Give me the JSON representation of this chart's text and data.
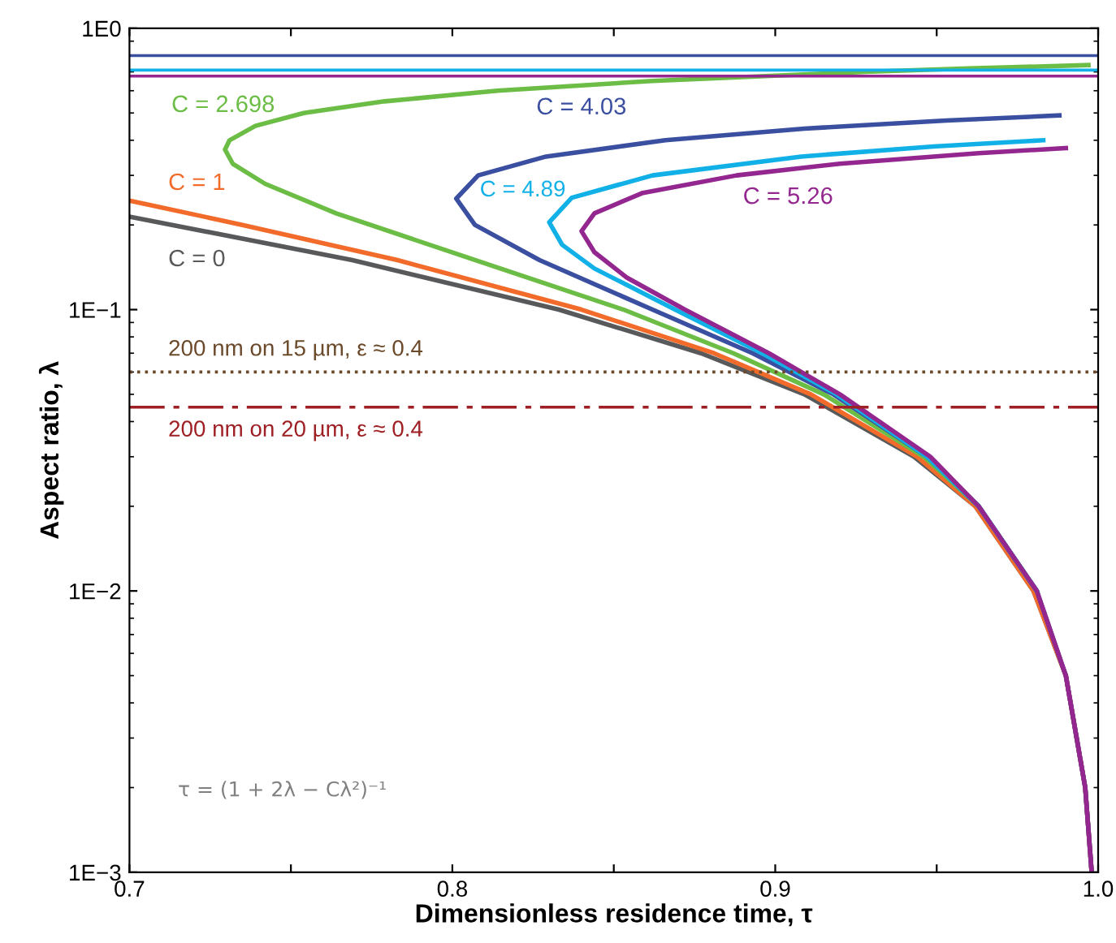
{
  "chart_data": {
    "type": "line",
    "xlabel": "Dimensionless residence time, τ",
    "ylabel": "Aspect ratio, λ",
    "log": "y",
    "xlim": [
      0.7,
      1.0
    ],
    "ylim": [
      0.001,
      1
    ],
    "xticks": [
      0.7,
      {
        "value": 0.75,
        "label": null
      },
      0.8,
      {
        "value": 0.85,
        "label": null
      },
      0.9,
      {
        "value": 0.95,
        "label": null
      },
      {
        "value": 1.0,
        "label": "1.0"
      }
    ],
    "yticks": [
      {
        "value": 0.001,
        "label": "1E−3"
      },
      {
        "value": 0.01,
        "label": "1E−2"
      },
      {
        "value": 0.1,
        "label": "1E−1"
      },
      {
        "value": 1,
        "label": "1E0"
      }
    ],
    "grid": false,
    "legend": false,
    "marker": "none",
    "line_style": "solid",
    "series": [
      {
        "name": "C = 0",
        "color": "#58595b",
        "x": [
          0.7,
          0.769,
          0.833,
          0.877,
          0.909,
          0.943,
          0.962,
          0.98,
          0.99,
          0.996,
          0.998
        ],
        "values": [
          0.214,
          0.15,
          0.1,
          0.07,
          0.05,
          0.03,
          0.02,
          0.01,
          0.005,
          0.002,
          0.001
        ]
      },
      {
        "name": "C = 1",
        "color": "#f26b2a",
        "x": [
          0.7,
          0.735,
          0.783,
          0.84,
          0.881,
          0.911,
          0.944,
          0.962,
          0.98,
          0.99,
          0.996,
          0.998
        ],
        "values": [
          0.244,
          0.2,
          0.15,
          0.1,
          0.07,
          0.05,
          0.03,
          0.02,
          0.01,
          0.005,
          0.002,
          0.001
        ]
      },
      {
        "name": "C = 2.698",
        "color": "#6cbd45",
        "x": [
          0.997,
          0.96,
          0.928,
          0.862,
          0.814,
          0.779,
          0.754,
          0.739,
          0.731,
          0.7296,
          0.732,
          0.742,
          0.764,
          0.807,
          0.853,
          0.887,
          0.915,
          0.946,
          0.963,
          0.981
        ],
        "values": [
          0.74,
          0.72,
          0.7,
          0.65,
          0.6,
          0.55,
          0.5,
          0.45,
          0.4,
          0.3706,
          0.33,
          0.28,
          0.22,
          0.15,
          0.1,
          0.07,
          0.05,
          0.03,
          0.02,
          0.01
        ]
      },
      {
        "name": "C = 4.03",
        "color": "#3a4fa0",
        "x": [
          0.988,
          0.953,
          0.909,
          0.866,
          0.829,
          0.808,
          0.8012,
          0.807,
          0.827,
          0.862,
          0.893,
          0.918,
          0.947,
          0.963,
          0.981,
          0.99,
          0.996,
          0.998
        ],
        "values": [
          0.49,
          0.47,
          0.44,
          0.4,
          0.35,
          0.3,
          0.2481,
          0.2,
          0.15,
          0.1,
          0.07,
          0.05,
          0.03,
          0.02,
          0.01,
          0.005,
          0.002,
          0.001
        ]
      },
      {
        "name": "C = 4.89",
        "color": "#11b1e8",
        "x": [
          0.983,
          0.949,
          0.908,
          0.862,
          0.837,
          0.83,
          0.834,
          0.844,
          0.869,
          0.896,
          0.919,
          0.947,
          0.963,
          0.981
        ],
        "values": [
          0.4,
          0.38,
          0.35,
          0.3,
          0.25,
          0.2045,
          0.17,
          0.14,
          0.1,
          0.07,
          0.05,
          0.03,
          0.02,
          0.01
        ]
      },
      {
        "name": "C = 5.26",
        "color": "#93278f",
        "x": [
          0.99,
          0.963,
          0.92,
          0.888,
          0.859,
          0.844,
          0.84,
          0.844,
          0.854,
          0.872,
          0.898,
          0.92,
          0.948,
          0.963,
          0.981,
          0.99,
          0.996,
          0.998
        ],
        "values": [
          0.375,
          0.36,
          0.33,
          0.3,
          0.26,
          0.22,
          0.19,
          0.16,
          0.13,
          0.1,
          0.07,
          0.05,
          0.03,
          0.02,
          0.01,
          0.005,
          0.002,
          0.001
        ]
      }
    ],
    "ref_lines": [
      {
        "axis": "y",
        "value": 0.8,
        "color": "#3a4fa0",
        "line_style": "solid"
      },
      {
        "axis": "y",
        "value": 0.71,
        "color": "#11b1e8",
        "line_style": "solid"
      },
      {
        "axis": "y",
        "value": 0.676,
        "color": "#93278f",
        "line_style": "solid"
      },
      {
        "axis": "y",
        "value": 0.06,
        "color": "#6b4a2b",
        "line_style": "dotted",
        "label": "200 nm on 15 µm, ε ≈ 0.4"
      },
      {
        "axis": "y",
        "value": 0.045,
        "color": "#9e1f24",
        "line_style": "dashdot",
        "label": "200 nm on 20 µm, ε ≈ 0.4"
      }
    ],
    "annotations": [
      "τ = (1 + 2λ − Cλ²)⁻¹"
    ]
  }
}
